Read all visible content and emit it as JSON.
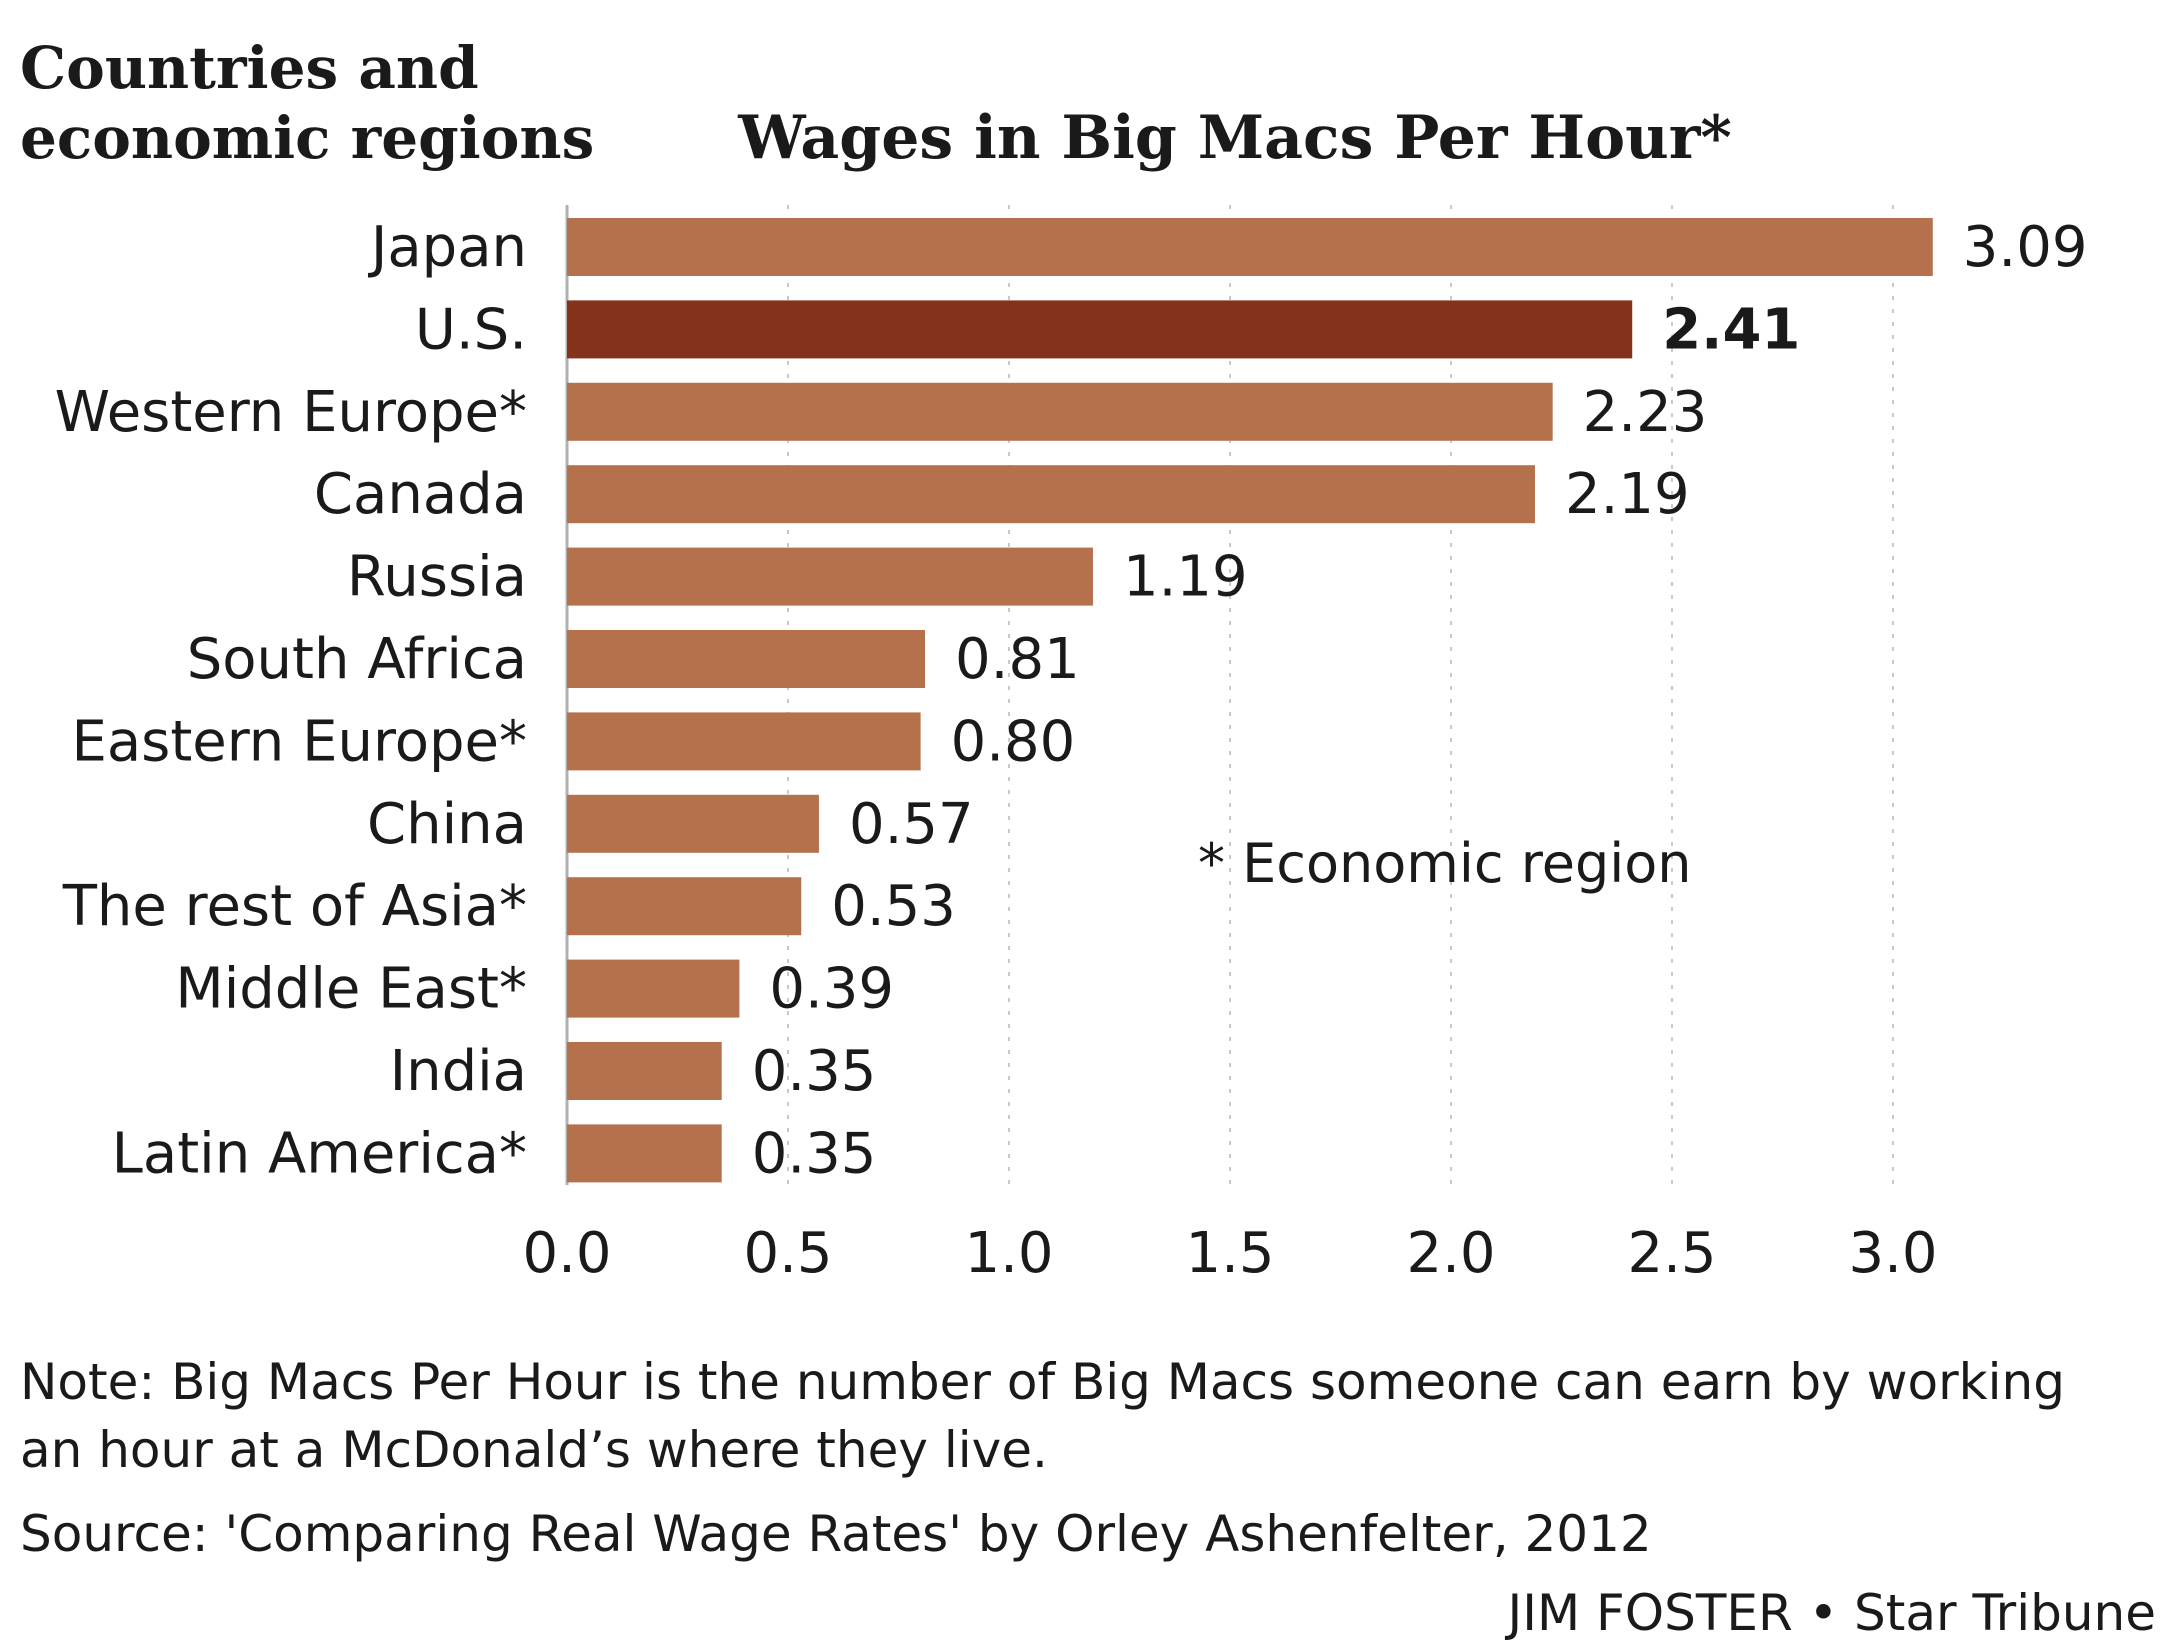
{
  "chart_data": {
    "type": "bar",
    "orientation": "horizontal",
    "title": "Wages in Big Macs Per Hour*",
    "category_axis_title": [
      "Countries and",
      "economic regions"
    ],
    "categories": [
      "Japan",
      "U.S.",
      "Western Europe*",
      "Canada",
      "Russia",
      "South Africa",
      "Eastern Europe*",
      "China",
      "The rest of Asia*",
      "Middle East*",
      "India",
      "Latin America*"
    ],
    "values": [
      3.09,
      2.41,
      2.23,
      2.19,
      1.19,
      0.81,
      0.8,
      0.57,
      0.53,
      0.39,
      0.35,
      0.35
    ],
    "value_labels": [
      "3.09",
      "2.41",
      "2.23",
      "2.19",
      "1.19",
      "0.81",
      "0.80",
      "0.57",
      "0.53",
      "0.39",
      "0.35",
      "0.35"
    ],
    "highlight_category": "U.S.",
    "xlim": [
      0,
      3.0
    ],
    "xticks": [
      0.0,
      0.5,
      1.0,
      1.5,
      2.0,
      2.5,
      3.0
    ],
    "xtick_labels": [
      "0.0",
      "0.5",
      "1.0",
      "1.5",
      "2.0",
      "2.5",
      "3.0"
    ],
    "grid": "vertical dotted",
    "annotation": "* Economic region",
    "colors": {
      "bar": "#b5714c",
      "highlight_bar": "#84321b",
      "text": "#1a1a1a",
      "grid": "#c9c9c9"
    }
  },
  "footer": {
    "note": "Note: Big Macs Per Hour is the number of Big Macs someone can earn by working an hour at a McDonald’s where they live.",
    "source": "Source: 'Comparing Real Wage Rates' by Orley Ashenfelter, 2012",
    "credit": "JIM FOSTER • Star Tribune"
  }
}
